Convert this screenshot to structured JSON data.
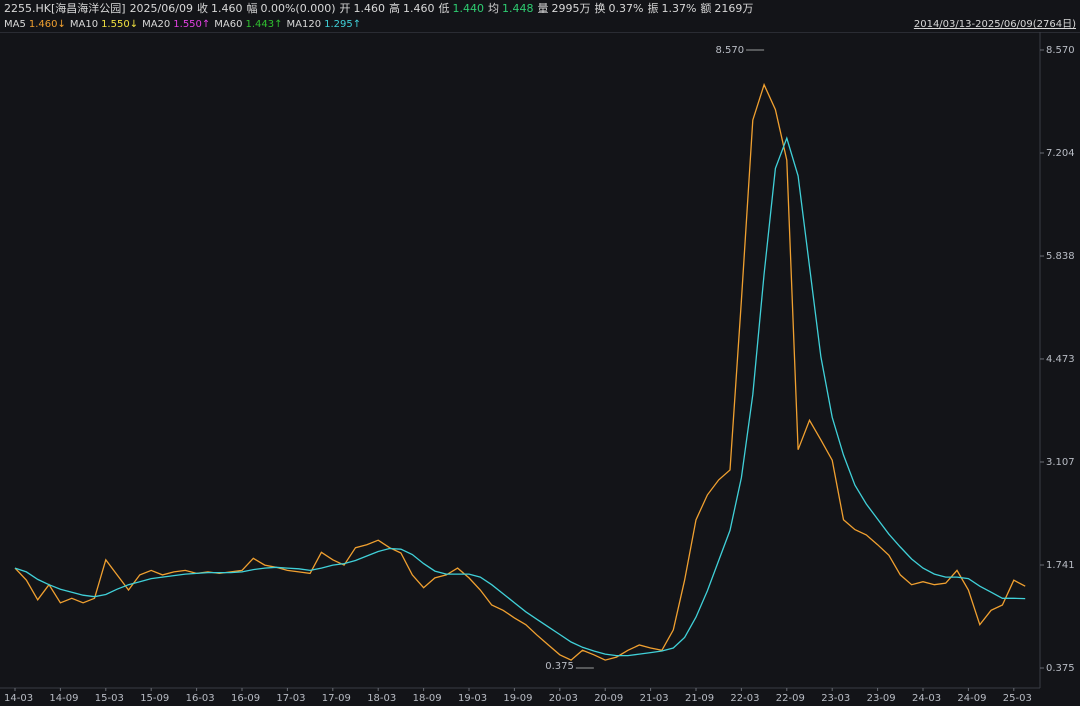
{
  "symbol": "2255.HK[海昌海洋公园]",
  "date": "2025/06/09",
  "quote": [
    {
      "label": "收",
      "value": "1.460",
      "color": "#d8d8d8"
    },
    {
      "label": "幅",
      "value": "0.00%(0.000)",
      "color": "#d8d8d8"
    },
    {
      "label": "开",
      "value": "1.460",
      "color": "#d8d8d8"
    },
    {
      "label": "高",
      "value": "1.460",
      "color": "#d8d8d8"
    },
    {
      "label": "低",
      "value": "1.440",
      "color": "#2ecc71"
    },
    {
      "label": "均",
      "value": "1.448",
      "color": "#2ecc71"
    },
    {
      "label": "量",
      "value": "2995万",
      "color": "#d8d8d8"
    },
    {
      "label": "换",
      "value": "0.37%",
      "color": "#d8d8d8"
    },
    {
      "label": "振",
      "value": "1.37%",
      "color": "#d8d8d8"
    },
    {
      "label": "额",
      "value": "2169万",
      "color": "#d8d8d8"
    }
  ],
  "date_range": "2014/03/13-2025/06/09(2764日)",
  "chart_data": {
    "type": "line",
    "categories": [
      "14-03",
      null,
      null,
      null,
      "14-09",
      null,
      null,
      null,
      "15-03",
      null,
      null,
      null,
      "15-09",
      null,
      null,
      null,
      "16-03",
      null,
      null,
      null,
      "16-09",
      null,
      null,
      null,
      "17-03",
      null,
      null,
      null,
      "17-09",
      null,
      null,
      null,
      "18-03",
      null,
      null,
      null,
      "18-09",
      null,
      null,
      null,
      "19-03",
      null,
      null,
      null,
      "19-09",
      null,
      null,
      null,
      "20-03",
      null,
      null,
      null,
      "20-09",
      null,
      null,
      null,
      "21-03",
      null,
      null,
      null,
      "21-09",
      null,
      null,
      null,
      "22-03",
      null,
      null,
      null,
      "22-09",
      null,
      null,
      null,
      "23-03",
      null,
      null,
      null,
      "23-09",
      null,
      null,
      null,
      "24-03",
      null,
      null,
      null,
      "24-09",
      null,
      null,
      null,
      "25-03",
      null
    ],
    "series": [
      {
        "name": "MA5",
        "latest": "1.460↓",
        "color": "#f0a030",
        "values": [
          1.7,
          1.54,
          1.28,
          1.48,
          1.24,
          1.3,
          1.24,
          1.3,
          1.81,
          1.61,
          1.41,
          1.61,
          1.67,
          1.61,
          1.65,
          1.67,
          1.63,
          1.65,
          1.63,
          1.65,
          1.67,
          1.83,
          1.74,
          1.71,
          1.67,
          1.65,
          1.63,
          1.91,
          1.81,
          1.74,
          1.97,
          2.01,
          2.07,
          1.97,
          1.9,
          1.61,
          1.44,
          1.57,
          1.61,
          1.7,
          1.57,
          1.41,
          1.21,
          1.14,
          1.04,
          0.95,
          0.81,
          0.68,
          0.55,
          0.48,
          0.61,
          0.55,
          0.48,
          0.52,
          0.61,
          0.68,
          0.64,
          0.61,
          0.88,
          1.54,
          2.34,
          2.67,
          2.87,
          3.0,
          5.25,
          7.64,
          8.11,
          7.78,
          7.11,
          3.27,
          3.66,
          3.4,
          3.13,
          2.34,
          2.21,
          2.14,
          2.01,
          1.87,
          1.61,
          1.48,
          1.52,
          1.48,
          1.5,
          1.67,
          1.41,
          0.95,
          1.14,
          1.21,
          1.54,
          1.46
        ]
      },
      {
        "name": "MA120",
        "latest": "1.295↑",
        "color": "#40d0d8",
        "values": [
          1.7,
          1.65,
          1.55,
          1.48,
          1.42,
          1.38,
          1.34,
          1.32,
          1.35,
          1.42,
          1.48,
          1.52,
          1.56,
          1.58,
          1.6,
          1.62,
          1.63,
          1.64,
          1.64,
          1.64,
          1.65,
          1.68,
          1.7,
          1.71,
          1.7,
          1.69,
          1.67,
          1.7,
          1.74,
          1.76,
          1.8,
          1.86,
          1.92,
          1.96,
          1.95,
          1.88,
          1.76,
          1.66,
          1.62,
          1.62,
          1.62,
          1.58,
          1.48,
          1.36,
          1.24,
          1.12,
          1.02,
          0.92,
          0.82,
          0.72,
          0.65,
          0.6,
          0.56,
          0.54,
          0.54,
          0.56,
          0.58,
          0.6,
          0.64,
          0.78,
          1.05,
          1.4,
          1.8,
          2.2,
          2.9,
          4.0,
          5.6,
          7.0,
          7.4,
          6.9,
          5.7,
          4.5,
          3.7,
          3.2,
          2.8,
          2.55,
          2.35,
          2.15,
          1.98,
          1.82,
          1.7,
          1.62,
          1.58,
          1.58,
          1.56,
          1.46,
          1.38,
          1.3,
          1.3,
          1.295
        ]
      }
    ],
    "other_ma": [
      {
        "name": "MA10",
        "latest": "1.550↓",
        "color": "#f0e040"
      },
      {
        "name": "MA20",
        "latest": "1.550↑",
        "color": "#e040e0"
      },
      {
        "name": "MA60",
        "latest": "1.443↑",
        "color": "#30c030"
      }
    ],
    "ylim": [
      0.11,
      8.835
    ],
    "yticks": [
      {
        "value": 8.57,
        "label": "8.570"
      },
      7.204,
      5.838,
      4.473,
      3.107,
      1.741,
      0.375
    ],
    "annotations": [
      {
        "text": "8.570",
        "value": 8.57,
        "category_index": 66,
        "color": "#e04040"
      },
      {
        "text": "0.375",
        "value": 0.375,
        "category_index": 51,
        "color": "#30c060"
      }
    ],
    "grid": false
  }
}
